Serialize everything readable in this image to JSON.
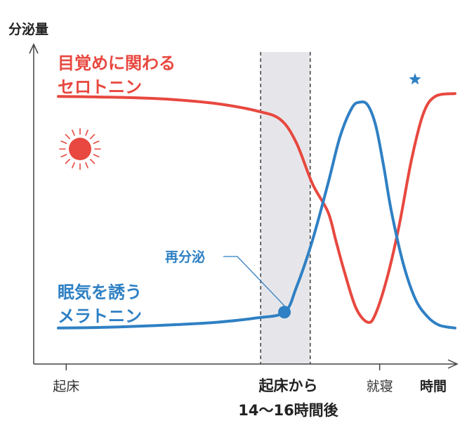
{
  "chart_data": {
    "type": "line",
    "ylabel": "分泌量",
    "xlabel": "時間",
    "x_ticks": [
      {
        "key": "wake",
        "label": "起床"
      },
      {
        "key": "sleep",
        "label": "就寝"
      }
    ],
    "highlight": {
      "label_line1": "起床から",
      "label_line2": "14〜16時間後"
    },
    "annotation": {
      "label": "再分泌"
    },
    "series": [
      {
        "name": "目覚めに関わるセロトニン",
        "label_line1": "目覚めに関わる",
        "label_line2": "セロトニン",
        "color": "#e8483f",
        "icon": "sun-icon",
        "x": [
          0,
          10,
          20,
          30,
          40,
          50,
          56,
          60,
          64,
          68,
          70,
          72,
          75,
          78,
          80,
          83,
          86,
          89,
          92,
          95,
          100
        ],
        "y": [
          90,
          89.8,
          89.5,
          88.8,
          87.5,
          85,
          82,
          74,
          60,
          50,
          40,
          30,
          17,
          12,
          15,
          28,
          46,
          68,
          84,
          90,
          91
        ]
      },
      {
        "name": "眠気を誘うメラトニン",
        "label_line1": "眠気を誘う",
        "label_line2": "メラトニン",
        "color": "#2f80c4",
        "icon": "moon-icon",
        "x": [
          0,
          10,
          20,
          30,
          40,
          50,
          57,
          60,
          64,
          68,
          71,
          74,
          76,
          78,
          80,
          82,
          84,
          87,
          90,
          93,
          96,
          100
        ],
        "y": [
          10,
          10.2,
          10.6,
          11.2,
          12,
          13.5,
          15.5,
          24,
          40,
          60,
          76,
          86,
          88,
          87,
          80,
          66,
          50,
          32,
          20,
          14,
          11,
          10
        ]
      }
    ],
    "peak_point": {
      "x": 57,
      "y": 15.5
    },
    "colors": {
      "axis": "#444444",
      "band": "#e6e6ea",
      "marker": "#2f80c4"
    }
  }
}
